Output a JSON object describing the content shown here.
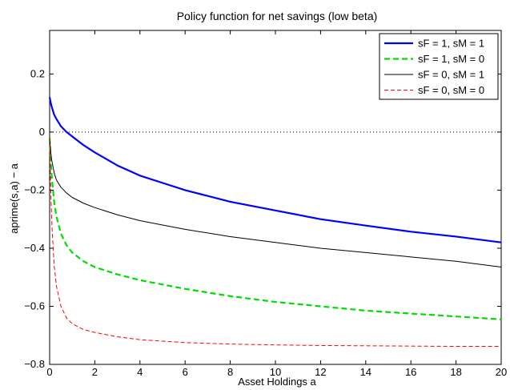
{
  "chart_data": {
    "type": "line",
    "title": "Policy function for net savings (low beta)",
    "xlabel": "Asset Holdings a",
    "ylabel": "aprime(s,a) − a",
    "xlim": [
      0,
      20
    ],
    "ylim": [
      -0.8,
      0.35
    ],
    "xticks": [
      0,
      2,
      4,
      6,
      8,
      10,
      12,
      14,
      16,
      18,
      20
    ],
    "yticks": [
      -0.8,
      -0.6,
      -0.4,
      -0.2,
      0,
      0.2
    ],
    "ytick_labels": [
      "−0.8",
      "−0.6",
      "−0.4",
      "−0.2",
      "0",
      "0.2"
    ],
    "grid": false,
    "legend_position": "top-right",
    "reference_line": {
      "y": 0,
      "style": "dotted",
      "color": "#000000"
    },
    "series": [
      {
        "name": "sF = 1, sM = 1",
        "color": "#0000ff",
        "style": "solid",
        "width": "thick",
        "x": [
          0,
          0.05,
          0.1,
          0.2,
          0.3,
          0.5,
          0.75,
          1,
          1.5,
          2,
          3,
          4,
          5,
          6,
          8,
          10,
          12,
          14,
          16,
          18,
          20
        ],
        "y": [
          0.12,
          0.1,
          0.085,
          0.06,
          0.045,
          0.02,
          0.0,
          -0.015,
          -0.045,
          -0.07,
          -0.115,
          -0.15,
          -0.175,
          -0.2,
          -0.24,
          -0.27,
          -0.3,
          -0.322,
          -0.343,
          -0.36,
          -0.38
        ]
      },
      {
        "name": "sF = 1, sM = 0",
        "color": "#00dd00",
        "style": "dashed",
        "width": "thick",
        "x": [
          0,
          0.05,
          0.1,
          0.2,
          0.3,
          0.5,
          0.75,
          1,
          1.5,
          2,
          3,
          4,
          5,
          6,
          8,
          10,
          12,
          14,
          16,
          18,
          20
        ],
        "y": [
          -0.02,
          -0.1,
          -0.16,
          -0.24,
          -0.29,
          -0.35,
          -0.39,
          -0.415,
          -0.445,
          -0.465,
          -0.49,
          -0.51,
          -0.525,
          -0.54,
          -0.565,
          -0.585,
          -0.6,
          -0.615,
          -0.625,
          -0.635,
          -0.645
        ]
      },
      {
        "name": "sF = 0, sM = 1",
        "color": "#000000",
        "style": "solid",
        "width": "thin",
        "x": [
          0,
          0.05,
          0.1,
          0.2,
          0.3,
          0.5,
          0.75,
          1,
          1.5,
          2,
          3,
          4,
          5,
          6,
          8,
          10,
          12,
          14,
          16,
          18,
          20
        ],
        "y": [
          -0.02,
          -0.07,
          -0.1,
          -0.14,
          -0.165,
          -0.19,
          -0.21,
          -0.225,
          -0.245,
          -0.26,
          -0.285,
          -0.305,
          -0.32,
          -0.335,
          -0.36,
          -0.38,
          -0.4,
          -0.415,
          -0.43,
          -0.445,
          -0.465
        ]
      },
      {
        "name": "sF = 0, sM = 0",
        "color": "#ff0000",
        "style": "dashed",
        "width": "thin",
        "x": [
          0,
          0.05,
          0.1,
          0.2,
          0.3,
          0.5,
          0.75,
          1,
          1.5,
          2,
          3,
          4,
          5,
          6,
          8,
          10,
          12,
          14,
          16,
          18,
          20
        ],
        "y": [
          -0.02,
          -0.2,
          -0.32,
          -0.46,
          -0.53,
          -0.6,
          -0.64,
          -0.66,
          -0.68,
          -0.69,
          -0.705,
          -0.715,
          -0.72,
          -0.725,
          -0.73,
          -0.733,
          -0.735,
          -0.736,
          -0.737,
          -0.738,
          -0.738
        ]
      }
    ]
  }
}
